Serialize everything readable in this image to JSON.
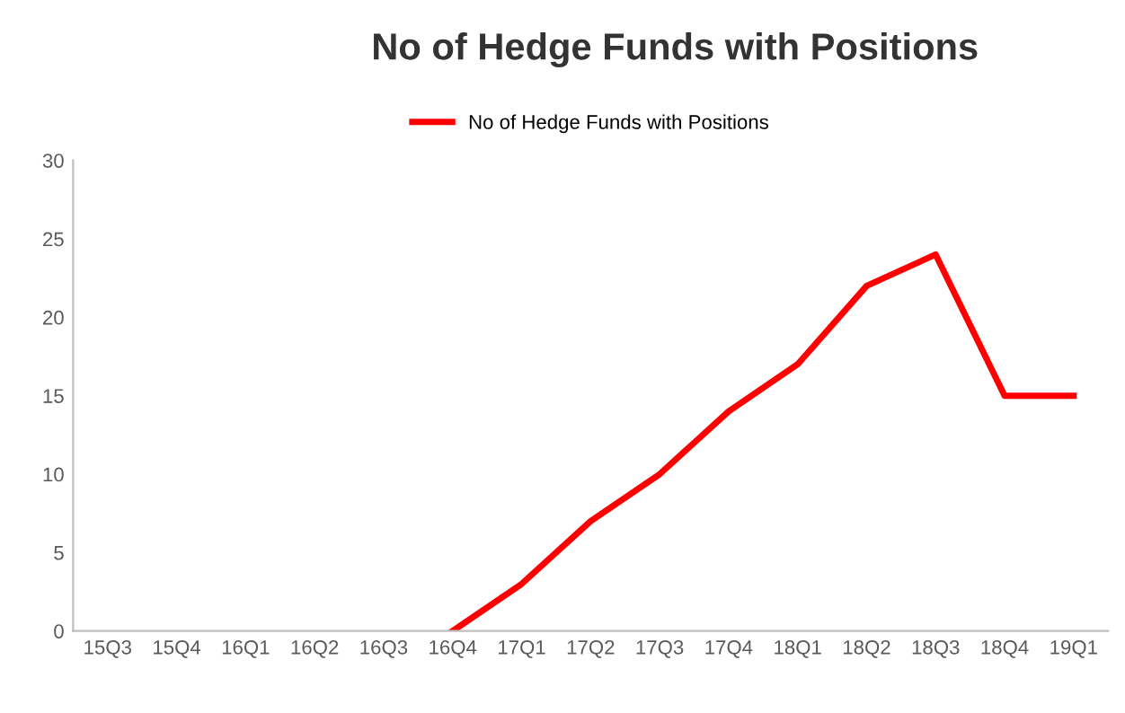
{
  "chart_data": {
    "type": "line",
    "title": "No of Hedge Funds with Positions",
    "categories": [
      "15Q3",
      "15Q4",
      "16Q1",
      "16Q2",
      "16Q3",
      "16Q4",
      "17Q1",
      "17Q2",
      "17Q3",
      "17Q4",
      "18Q1",
      "18Q2",
      "18Q3",
      "18Q4",
      "19Q1"
    ],
    "series": [
      {
        "name": "No of Hedge Funds with Positions",
        "color": "#ff0000",
        "values": [
          null,
          null,
          null,
          null,
          null,
          0,
          3,
          7,
          10,
          14,
          17,
          22,
          24,
          15,
          15
        ]
      }
    ],
    "ylim": [
      0,
      30
    ],
    "yticks": [
      0,
      5,
      10,
      15,
      20,
      25,
      30
    ],
    "grid": false,
    "legend": "top",
    "marker": "none",
    "line_style": "solid"
  }
}
